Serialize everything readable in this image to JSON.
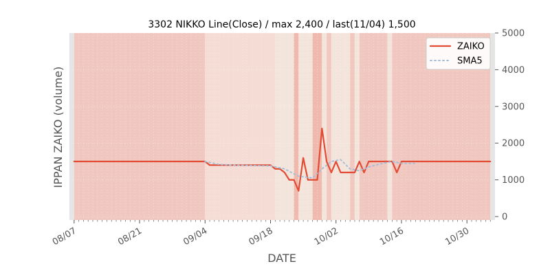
{
  "chart_data": {
    "type": "line",
    "title": "3302 NIKKO Line(Close) / max 2,400 / last(11/04) 1,500",
    "xlabel": "DATE",
    "ylabel": "IPPAN ZAIKO (volume)",
    "ylim": [
      0,
      5000
    ],
    "yticks": [
      0,
      1000,
      2000,
      3000,
      4000,
      5000
    ],
    "ytick_labels": [
      "0",
      "1000",
      "2000",
      "3000",
      "4000",
      "5000"
    ],
    "y_axis_side": "right",
    "xlim": [
      "2018-08-06",
      "2018-11-05"
    ],
    "xticks": [
      "2018-08-07",
      "2018-08-21",
      "2018-09-04",
      "2018-09-18",
      "2018-10-02",
      "2018-10-16",
      "2018-10-30"
    ],
    "xtick_labels": [
      "08/07",
      "08/21",
      "09/04",
      "09/18",
      "10/02",
      "10/16",
      "10/30"
    ],
    "legend": {
      "position": "top-right"
    },
    "colors": {
      "zaiko": "#e24a33",
      "sma5": "#a4bfd9",
      "axes_face": "#e5e5e5",
      "grid": "#ffffff"
    },
    "series": [
      {
        "name": "ZAIKO",
        "style": "solid",
        "points": [
          [
            "2018-08-07",
            1500
          ],
          [
            "2018-09-03",
            1500
          ],
          [
            "2018-09-04",
            1500
          ],
          [
            "2018-09-05",
            1400
          ],
          [
            "2018-09-18",
            1400
          ],
          [
            "2018-09-19",
            1300
          ],
          [
            "2018-09-20",
            1300
          ],
          [
            "2018-09-21",
            1200
          ],
          [
            "2018-09-22",
            1000
          ],
          [
            "2018-09-23",
            1000
          ],
          [
            "2018-09-24",
            700
          ],
          [
            "2018-09-25",
            1600
          ],
          [
            "2018-09-26",
            1000
          ],
          [
            "2018-09-28",
            1000
          ],
          [
            "2018-09-29",
            2400
          ],
          [
            "2018-09-30",
            1500
          ],
          [
            "2018-10-01",
            1200
          ],
          [
            "2018-10-02",
            1500
          ],
          [
            "2018-10-03",
            1200
          ],
          [
            "2018-10-06",
            1200
          ],
          [
            "2018-10-07",
            1500
          ],
          [
            "2018-10-08",
            1200
          ],
          [
            "2018-10-09",
            1500
          ],
          [
            "2018-10-14",
            1500
          ],
          [
            "2018-10-15",
            1200
          ],
          [
            "2018-10-16",
            1500
          ],
          [
            "2018-11-04",
            1500
          ]
        ]
      },
      {
        "name": "SMA5",
        "style": "dotted",
        "points": [
          [
            "2018-09-04",
            1500
          ],
          [
            "2018-09-07",
            1420
          ],
          [
            "2018-09-10",
            1400
          ],
          [
            "2018-09-18",
            1380
          ],
          [
            "2018-09-21",
            1300
          ],
          [
            "2018-09-24",
            1100
          ],
          [
            "2018-09-27",
            1050
          ],
          [
            "2018-09-29",
            1300
          ],
          [
            "2018-10-01",
            1500
          ],
          [
            "2018-10-03",
            1550
          ],
          [
            "2018-10-05",
            1300
          ],
          [
            "2018-10-07",
            1250
          ],
          [
            "2018-10-09",
            1350
          ],
          [
            "2018-10-12",
            1450
          ],
          [
            "2018-10-14",
            1500
          ],
          [
            "2018-10-16",
            1450
          ],
          [
            "2018-10-19",
            1450
          ]
        ]
      }
    ],
    "background_bands": [
      {
        "start": "2018-08-07",
        "end": "2018-09-04",
        "color": "#f1c8bf"
      },
      {
        "start": "2018-09-04",
        "end": "2018-09-19",
        "color": "#f5dcd4"
      },
      {
        "start": "2018-09-19",
        "end": "2018-09-23",
        "color": "#f4e5dc"
      },
      {
        "start": "2018-09-23",
        "end": "2018-09-24",
        "color": "#f0b9ad"
      },
      {
        "start": "2018-09-24",
        "end": "2018-09-27",
        "color": "#f4e5dc"
      },
      {
        "start": "2018-09-27",
        "end": "2018-09-29",
        "color": "#f0b9ad"
      },
      {
        "start": "2018-09-29",
        "end": "2018-09-30",
        "color": "#f4e5dc"
      },
      {
        "start": "2018-09-30",
        "end": "2018-10-01",
        "color": "#f1c8bf"
      },
      {
        "start": "2018-10-01",
        "end": "2018-10-05",
        "color": "#f4e5dc"
      },
      {
        "start": "2018-10-05",
        "end": "2018-10-06",
        "color": "#f1c8bf"
      },
      {
        "start": "2018-10-06",
        "end": "2018-10-07",
        "color": "#f4e5dc"
      },
      {
        "start": "2018-10-07",
        "end": "2018-10-13",
        "color": "#f1c8bf"
      },
      {
        "start": "2018-10-13",
        "end": "2018-10-14",
        "color": "#f4e5dc"
      },
      {
        "start": "2018-10-14",
        "end": "2018-11-04",
        "color": "#f1c8bf"
      }
    ]
  }
}
